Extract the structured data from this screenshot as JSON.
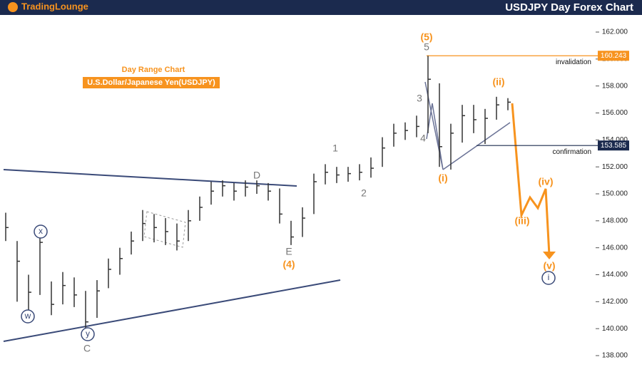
{
  "header": {
    "logo": "TradingLounge",
    "title": "USDJPY Day Forex Chart"
  },
  "chart_data": {
    "type": "ohlc",
    "subtitle": "Day Range Chart",
    "instrument": "U.S.Dollar/Japanese Yen(USDJPY)",
    "bars": {
      "high": [
        148.6,
        146.5,
        144,
        147,
        143.5,
        144.2,
        143.8,
        142.8,
        143.6,
        145.2,
        146,
        147.2,
        148.8,
        148.5,
        148.2,
        147.8,
        148.8,
        149.8,
        150.9,
        151,
        150.8,
        151,
        151,
        150.8,
        150.4,
        148,
        149,
        151.5,
        152.2,
        152,
        152,
        152.2,
        152.7,
        154.2,
        155.2,
        155.3,
        155.8,
        160.24,
        158.2,
        155.2,
        156.6,
        156.6,
        156.3,
        157.2,
        157.1
      ],
      "low": [
        146.5,
        142,
        141.4,
        142.5,
        141,
        141.8,
        141.6,
        140,
        140.8,
        143,
        144,
        145.5,
        146.5,
        146.4,
        146.2,
        145.8,
        146.5,
        148,
        149.2,
        149.8,
        149.5,
        149.8,
        150,
        149.5,
        147.8,
        146.2,
        146.8,
        148.5,
        150.7,
        150.8,
        150.9,
        151,
        151.2,
        152,
        153.5,
        154,
        154.2,
        154.5,
        152,
        151.8,
        153.8,
        154.5,
        153.7,
        155.5,
        156.2
      ],
      "close": [
        147.5,
        145,
        142.7,
        146.4,
        141.8,
        143.2,
        142.5,
        140.5,
        142.8,
        144.4,
        145.2,
        146.5,
        147.8,
        147.5,
        147.2,
        146.5,
        148,
        149,
        150.2,
        150.6,
        150.2,
        150.5,
        150.6,
        150.2,
        148.5,
        146.8,
        148.2,
        150.9,
        151.6,
        151.4,
        151.5,
        151.6,
        151.9,
        153.4,
        154.5,
        154.7,
        155,
        158.5,
        153.5,
        154.5,
        155.8,
        155.5,
        155.6,
        156.6,
        156.8
      ]
    },
    "levels": [
      {
        "label": "invalidation",
        "value": 160.243
      },
      {
        "label": "confirmation",
        "value": 153.585
      }
    ],
    "wave_labels": [
      "(5)",
      "5",
      "3",
      "4",
      "1",
      "2",
      "D",
      "E",
      "(4)",
      "(i)",
      "(ii)",
      "(iii)",
      "(iv)",
      "(v)",
      "i",
      "x",
      "w",
      "y",
      "C"
    ],
    "ylim": [
      138,
      162
    ],
    "yticks": [
      {
        "value": 138,
        "label": "138.000"
      },
      {
        "value": 140,
        "label": "140.000"
      },
      {
        "value": 142,
        "label": "142.000"
      },
      {
        "value": 144,
        "label": "144.000"
      },
      {
        "value": 146,
        "label": "146.000"
      },
      {
        "value": 148,
        "label": "148.000"
      },
      {
        "value": 150,
        "label": "150.000"
      },
      {
        "value": 152,
        "label": "152.000"
      },
      {
        "value": 154,
        "label": "154.000"
      },
      {
        "value": 156,
        "label": "156.000"
      },
      {
        "value": 158,
        "label": "158.000"
      },
      {
        "value": 160,
        "label": "160.000"
      },
      {
        "value": 162,
        "label": "162.000"
      }
    ]
  }
}
